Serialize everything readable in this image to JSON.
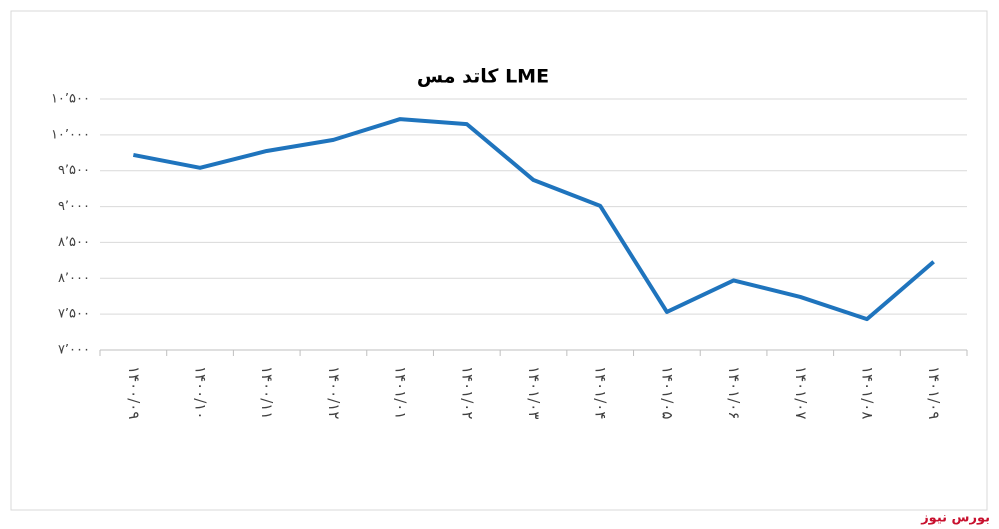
{
  "chart_data": {
    "type": "line",
    "title": "کاتد مس LME",
    "categories": [
      "۱۴۰۰/۰۹",
      "۱۴۰۰/۱۰",
      "۱۴۰۰/۱۱",
      "۱۴۰۰/۱۲",
      "۱۴۰۱/۰۱",
      "۱۴۰۱/۰۲",
      "۱۴۰۱/۰۳",
      "۱۴۰۱/۰۴",
      "۱۴۰۱/۰۵",
      "۱۴۰۱/۰۶",
      "۱۴۰۱/۰۷",
      "۱۴۰۱/۰۸",
      "۱۴۰۱/۰۹"
    ],
    "series": [
      {
        "name": "کاتد مس LME",
        "color": "#1f74bd",
        "values": [
          9720,
          9540,
          9775,
          9930,
          10220,
          10150,
          9370,
          9010,
          7530,
          7970,
          7740,
          7430,
          8230
        ]
      }
    ],
    "ylim": [
      7000,
      10500
    ],
    "yticks": [
      {
        "value": 7000,
        "label": "۷٬۰۰۰"
      },
      {
        "value": 7500,
        "label": "۷٬۵۰۰"
      },
      {
        "value": 8000,
        "label": "۸٬۰۰۰"
      },
      {
        "value": 8500,
        "label": "۸٬۵۰۰"
      },
      {
        "value": 9000,
        "label": "۹٬۰۰۰"
      },
      {
        "value": 9500,
        "label": "۹٬۵۰۰"
      },
      {
        "value": 10000,
        "label": "۱۰٬۰۰۰"
      },
      {
        "value": 10500,
        "label": "۱۰٬۵۰۰"
      }
    ],
    "grid": true
  },
  "watermark": "بورس نیوز"
}
